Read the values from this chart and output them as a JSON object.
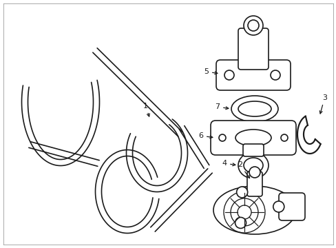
{
  "bg_color": "#ffffff",
  "line_color": "#1a1a1a",
  "lw": 1.2,
  "fig_w": 4.89,
  "fig_h": 3.6,
  "dpi": 100
}
